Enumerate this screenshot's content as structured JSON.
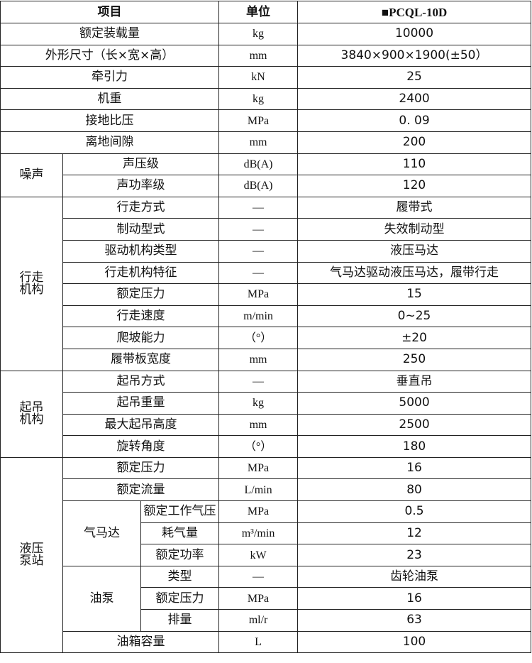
{
  "header": {
    "item": "项目",
    "unit": "单位",
    "model": "■PCQL-10D"
  },
  "rows": [
    {
      "label": "额定装载量",
      "unit": "kg",
      "value": "10000"
    },
    {
      "label": "外形尺寸（长×宽×高）",
      "unit": "mm",
      "value": "3840×900×1900(±50）"
    },
    {
      "label": "牵引力",
      "unit": "kN",
      "value": "25"
    },
    {
      "label": "机重",
      "unit": "kg",
      "value": "2400"
    },
    {
      "label": "接地比压",
      "unit": "MPa",
      "value": "0. 09"
    },
    {
      "label": "离地间隙",
      "unit": "mm",
      "value": "200"
    },
    {
      "group": "噪声",
      "items": [
        {
          "label": "声压级",
          "unit": "dB(A)",
          "value": "110"
        },
        {
          "label": "声功率级",
          "unit": "dB(A)",
          "value": "120"
        }
      ]
    },
    {
      "group": "行走机构",
      "items": [
        {
          "label": "行走方式",
          "unit": "—",
          "value": "履带式"
        },
        {
          "label": "制动型式",
          "unit": "—",
          "value": "失效制动型"
        },
        {
          "label": "驱动机构类型",
          "unit": "—",
          "value": "液压马达"
        },
        {
          "label": "行走机构特征",
          "unit": "—",
          "value": "气马达驱动液压马达，履带行走"
        },
        {
          "label": "额定压力",
          "unit": "MPa",
          "value": "15"
        },
        {
          "label": "行走速度",
          "unit": "m/min",
          "value": "0~25"
        },
        {
          "label": "爬坡能力",
          "unit": "（°）",
          "value": "±20"
        },
        {
          "label": "履带板宽度",
          "unit": "mm",
          "value": "250"
        }
      ]
    },
    {
      "group": "起吊机构",
      "items": [
        {
          "label": "起吊方式",
          "unit": "—",
          "value": "垂直吊"
        },
        {
          "label": "起吊重量",
          "unit": "kg",
          "value": "5000"
        },
        {
          "label": "最大起吊高度",
          "unit": "mm",
          "value": "2500"
        },
        {
          "label": "旋转角度",
          "unit": "（°）",
          "value": "180"
        }
      ]
    },
    {
      "group": "液压泵站",
      "items": [
        {
          "label": "额定压力",
          "unit": "MPa",
          "value": "16"
        },
        {
          "label": "额定流量",
          "unit": "L/min",
          "value": "80"
        },
        {
          "subgroup": "气马达",
          "items": [
            {
              "label": "额定工作气压",
              "unit": "MPa",
              "value": "0.5"
            },
            {
              "label": "耗气量",
              "unit": "m³/min",
              "value": "12"
            },
            {
              "label": "额定功率",
              "unit": "kW",
              "value": "23"
            }
          ]
        },
        {
          "subgroup": "油泵",
          "items": [
            {
              "label": "类型",
              "unit": "—",
              "value": "齿轮油泵"
            },
            {
              "label": "额定压力",
              "unit": "MPa",
              "value": "16"
            },
            {
              "label": "排量",
              "unit": "ml/r",
              "value": "63"
            }
          ]
        },
        {
          "label": "油箱容量",
          "unit": "L",
          "value": "100"
        }
      ]
    }
  ]
}
